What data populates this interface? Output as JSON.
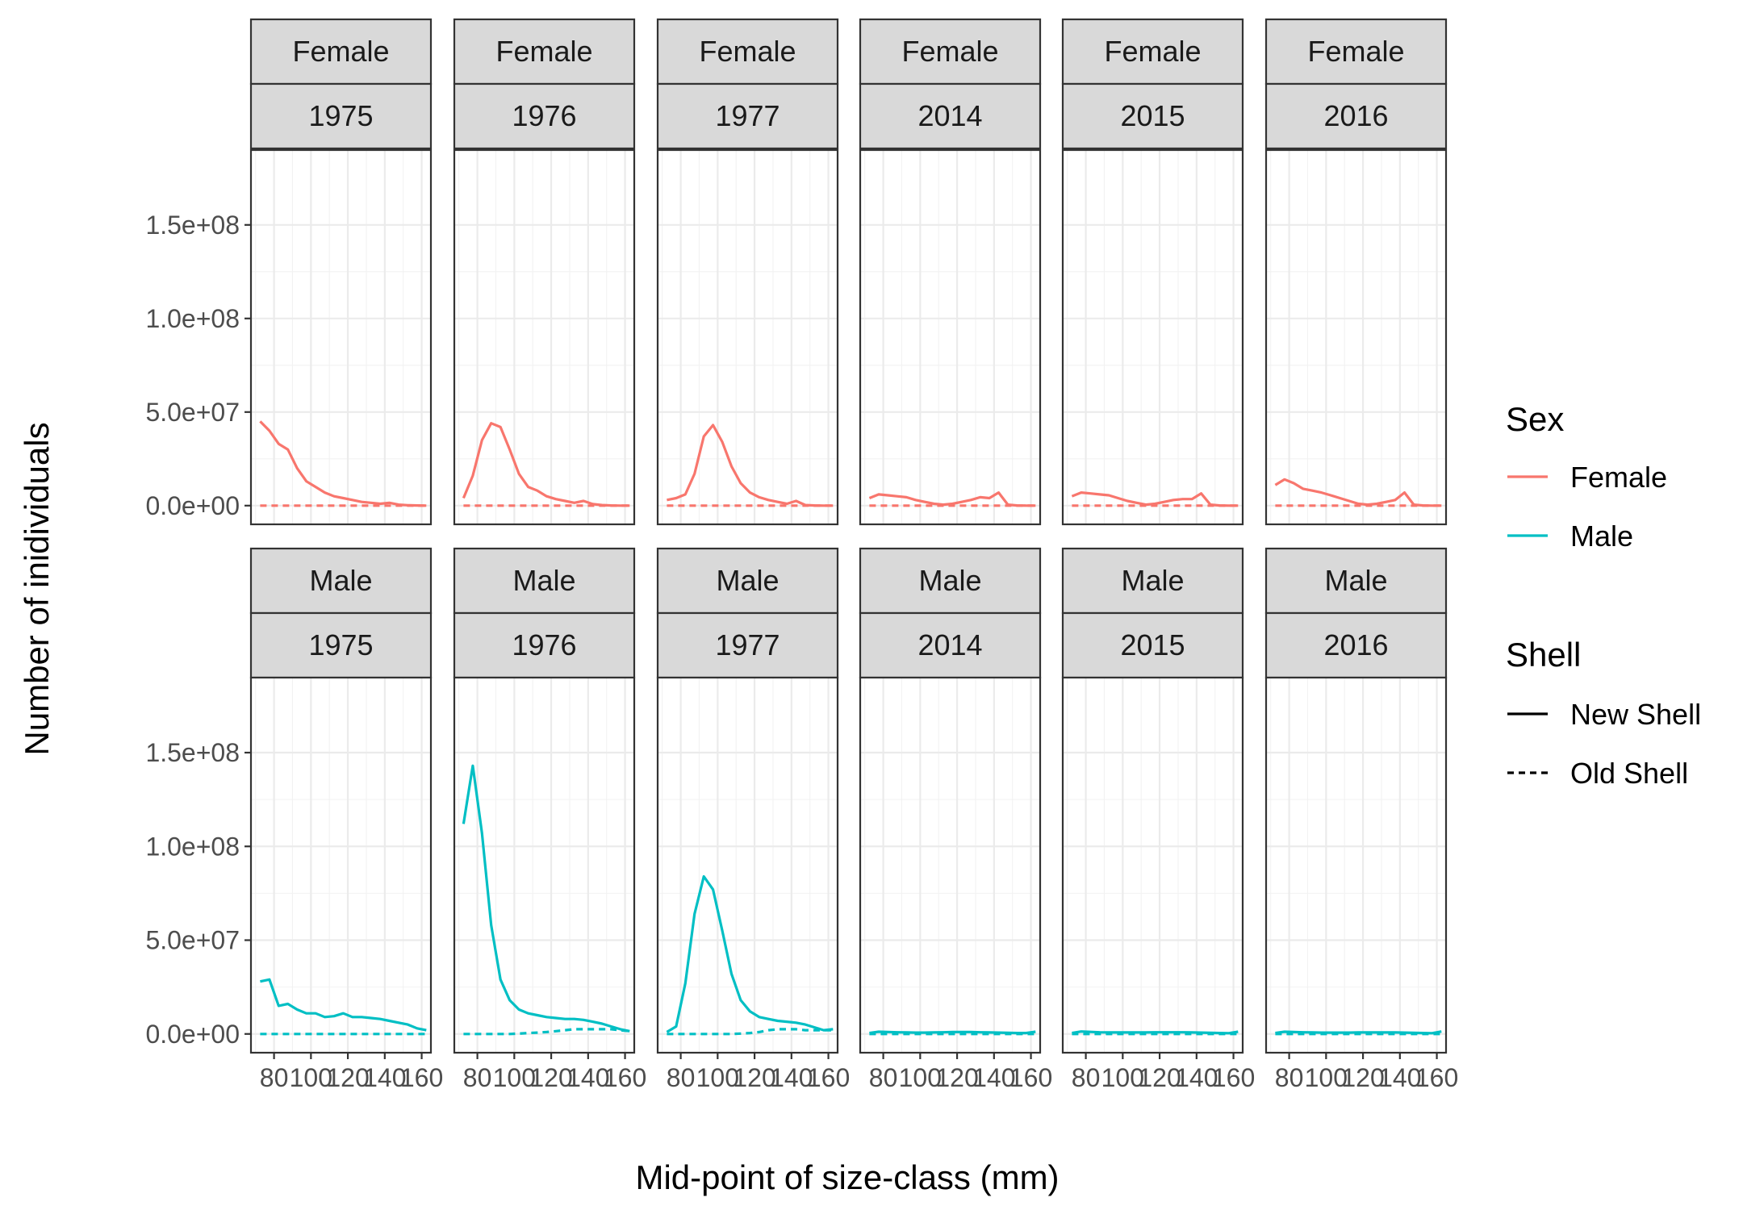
{
  "chart_data": {
    "type": "line",
    "xlabel": "Mid-point of size-class (mm)",
    "ylabel": "Number of inidividuals",
    "xlim": [
      67.5,
      165
    ],
    "ylim": [
      -10000000.0,
      190000000.0
    ],
    "x_ticks": [
      80,
      100,
      120,
      140,
      160
    ],
    "x_tick_labels": [
      "80",
      "100",
      "120",
      "140",
      "160"
    ],
    "y_ticks": [
      0,
      50000000,
      100000000,
      150000000
    ],
    "y_tick_labels": [
      "0.0e+00",
      "5.0e+07",
      "1.0e+08",
      "1.5e+08"
    ],
    "grid": true,
    "facet_rows": [
      "Female",
      "Male"
    ],
    "facet_cols": [
      "1975",
      "1976",
      "1977",
      "2014",
      "2015",
      "2016"
    ],
    "x": [
      72.5,
      77.5,
      82.5,
      87.5,
      92.5,
      97.5,
      102.5,
      107.5,
      112.5,
      117.5,
      122.5,
      127.5,
      132.5,
      137.5,
      142.5,
      147.5,
      152.5,
      157.5,
      162.5
    ],
    "colors": {
      "Female": "#F8766D",
      "Male": "#00BFC4"
    },
    "legend": {
      "placement": "right",
      "sex_title": "Sex",
      "sex_items": [
        "Female",
        "Male"
      ],
      "shell_title": "Shell",
      "shell_items": [
        "New Shell",
        "Old Shell"
      ]
    },
    "panels": [
      {
        "row": "Female",
        "col": "1975",
        "new_shell": [
          45000000,
          40000000,
          33000000,
          30000000,
          20000000,
          13000000,
          10000000,
          7000000,
          5000000,
          4000000,
          3000000,
          2000000,
          1500000,
          1000000,
          1500000,
          500000,
          200000,
          100000,
          0
        ],
        "old_shell": [
          0,
          0,
          0,
          0,
          0,
          0,
          0,
          0,
          0,
          0,
          0,
          0,
          0,
          0,
          0,
          0,
          0,
          0,
          0
        ]
      },
      {
        "row": "Female",
        "col": "1976",
        "new_shell": [
          4000000,
          16000000,
          35000000,
          44000000,
          42000000,
          30000000,
          17000000,
          10000000,
          8000000,
          5000000,
          3500000,
          2500000,
          1500000,
          2500000,
          800000,
          300000,
          100000,
          0,
          0
        ],
        "old_shell": [
          0,
          0,
          0,
          0,
          0,
          0,
          0,
          0,
          0,
          0,
          0,
          0,
          0,
          0,
          0,
          0,
          0,
          0,
          0
        ]
      },
      {
        "row": "Female",
        "col": "1977",
        "new_shell": [
          3000000,
          4000000,
          6000000,
          17000000,
          37000000,
          43000000,
          34000000,
          21000000,
          12000000,
          7000000,
          4500000,
          3000000,
          2000000,
          1000000,
          2500000,
          300000,
          100000,
          0,
          0
        ],
        "old_shell": [
          0,
          0,
          0,
          0,
          0,
          0,
          0,
          0,
          0,
          0,
          0,
          0,
          0,
          0,
          0,
          0,
          0,
          0,
          0
        ]
      },
      {
        "row": "Female",
        "col": "2014",
        "new_shell": [
          4000000,
          6000000,
          5500000,
          5000000,
          4500000,
          3000000,
          2000000,
          1000000,
          500000,
          1000000,
          2000000,
          3000000,
          4500000,
          4000000,
          7000000,
          500000,
          100000,
          0,
          0
        ],
        "old_shell": [
          0,
          0,
          0,
          0,
          0,
          0,
          0,
          0,
          0,
          0,
          0,
          0,
          0,
          0,
          0,
          0,
          0,
          0,
          0
        ]
      },
      {
        "row": "Female",
        "col": "2015",
        "new_shell": [
          5000000,
          7000000,
          6500000,
          6000000,
          5500000,
          4000000,
          2500000,
          1500000,
          500000,
          1000000,
          2000000,
          3000000,
          3500000,
          3500000,
          6500000,
          500000,
          100000,
          0,
          0
        ],
        "old_shell": [
          0,
          0,
          0,
          0,
          0,
          0,
          0,
          0,
          0,
          0,
          0,
          0,
          0,
          0,
          0,
          0,
          0,
          0,
          0
        ]
      },
      {
        "row": "Female",
        "col": "2016",
        "new_shell": [
          11000000,
          14000000,
          12000000,
          9000000,
          8000000,
          7000000,
          5500000,
          4000000,
          2500000,
          1000000,
          500000,
          1000000,
          2000000,
          3000000,
          7000000,
          500000,
          100000,
          0,
          0
        ],
        "old_shell": [
          0,
          0,
          0,
          0,
          0,
          0,
          0,
          0,
          0,
          0,
          0,
          0,
          0,
          0,
          0,
          0,
          0,
          0,
          0
        ]
      },
      {
        "row": "Male",
        "col": "1975",
        "new_shell": [
          28000000,
          29000000,
          15000000,
          16000000,
          13000000,
          11000000,
          11000000,
          9000000,
          9500000,
          11000000,
          9000000,
          9000000,
          8500000,
          8000000,
          7000000,
          6000000,
          5000000,
          3000000,
          2000000
        ],
        "old_shell": [
          0,
          0,
          0,
          0,
          0,
          0,
          0,
          0,
          0,
          0,
          0,
          0,
          0,
          0,
          0,
          0,
          0,
          0,
          0
        ]
      },
      {
        "row": "Male",
        "col": "1976",
        "new_shell": [
          112000000,
          143000000,
          107000000,
          58000000,
          29000000,
          18000000,
          13000000,
          11000000,
          10000000,
          9000000,
          8500000,
          8000000,
          8000000,
          7500000,
          6500000,
          5500000,
          4000000,
          2500000,
          1500000
        ],
        "old_shell": [
          0,
          0,
          0,
          0,
          0,
          0,
          200000,
          500000,
          700000,
          1000000,
          1500000,
          2000000,
          2500000,
          2500000,
          2500000,
          2500000,
          2500000,
          2000000,
          1500000
        ]
      },
      {
        "row": "Male",
        "col": "1977",
        "new_shell": [
          1000000,
          4000000,
          27000000,
          64000000,
          84000000,
          77000000,
          55000000,
          32000000,
          18000000,
          12000000,
          9000000,
          8000000,
          7000000,
          6500000,
          6000000,
          5000000,
          3500000,
          2000000,
          2500000
        ],
        "old_shell": [
          0,
          0,
          0,
          0,
          0,
          0,
          0,
          0,
          200000,
          500000,
          1000000,
          2000000,
          2500000,
          2500000,
          2500000,
          2000000,
          2000000,
          2000000,
          2000000
        ]
      },
      {
        "row": "Male",
        "col": "2014",
        "new_shell": [
          500000,
          1200000,
          1000000,
          900000,
          800000,
          700000,
          700000,
          800000,
          900000,
          1000000,
          1000000,
          1000000,
          900000,
          800000,
          700000,
          600000,
          500000,
          500000,
          1200000
        ],
        "old_shell": [
          0,
          0,
          0,
          0,
          0,
          0,
          0,
          0,
          0,
          0,
          0,
          0,
          0,
          0,
          0,
          0,
          0,
          0,
          0
        ]
      },
      {
        "row": "Male",
        "col": "2015",
        "new_shell": [
          500000,
          1300000,
          1100000,
          900000,
          800000,
          800000,
          800000,
          800000,
          800000,
          900000,
          900000,
          900000,
          900000,
          800000,
          700000,
          600000,
          500000,
          400000,
          1200000
        ],
        "old_shell": [
          0,
          0,
          0,
          0,
          0,
          0,
          0,
          0,
          0,
          0,
          0,
          0,
          0,
          0,
          0,
          0,
          0,
          0,
          0
        ]
      },
      {
        "row": "Male",
        "col": "2016",
        "new_shell": [
          500000,
          1200000,
          1000000,
          900000,
          800000,
          700000,
          700000,
          700000,
          700000,
          800000,
          800000,
          800000,
          800000,
          800000,
          700000,
          600000,
          500000,
          400000,
          1300000
        ],
        "old_shell": [
          0,
          0,
          0,
          0,
          0,
          0,
          0,
          0,
          0,
          0,
          0,
          0,
          0,
          0,
          0,
          0,
          0,
          0,
          0
        ]
      }
    ]
  }
}
